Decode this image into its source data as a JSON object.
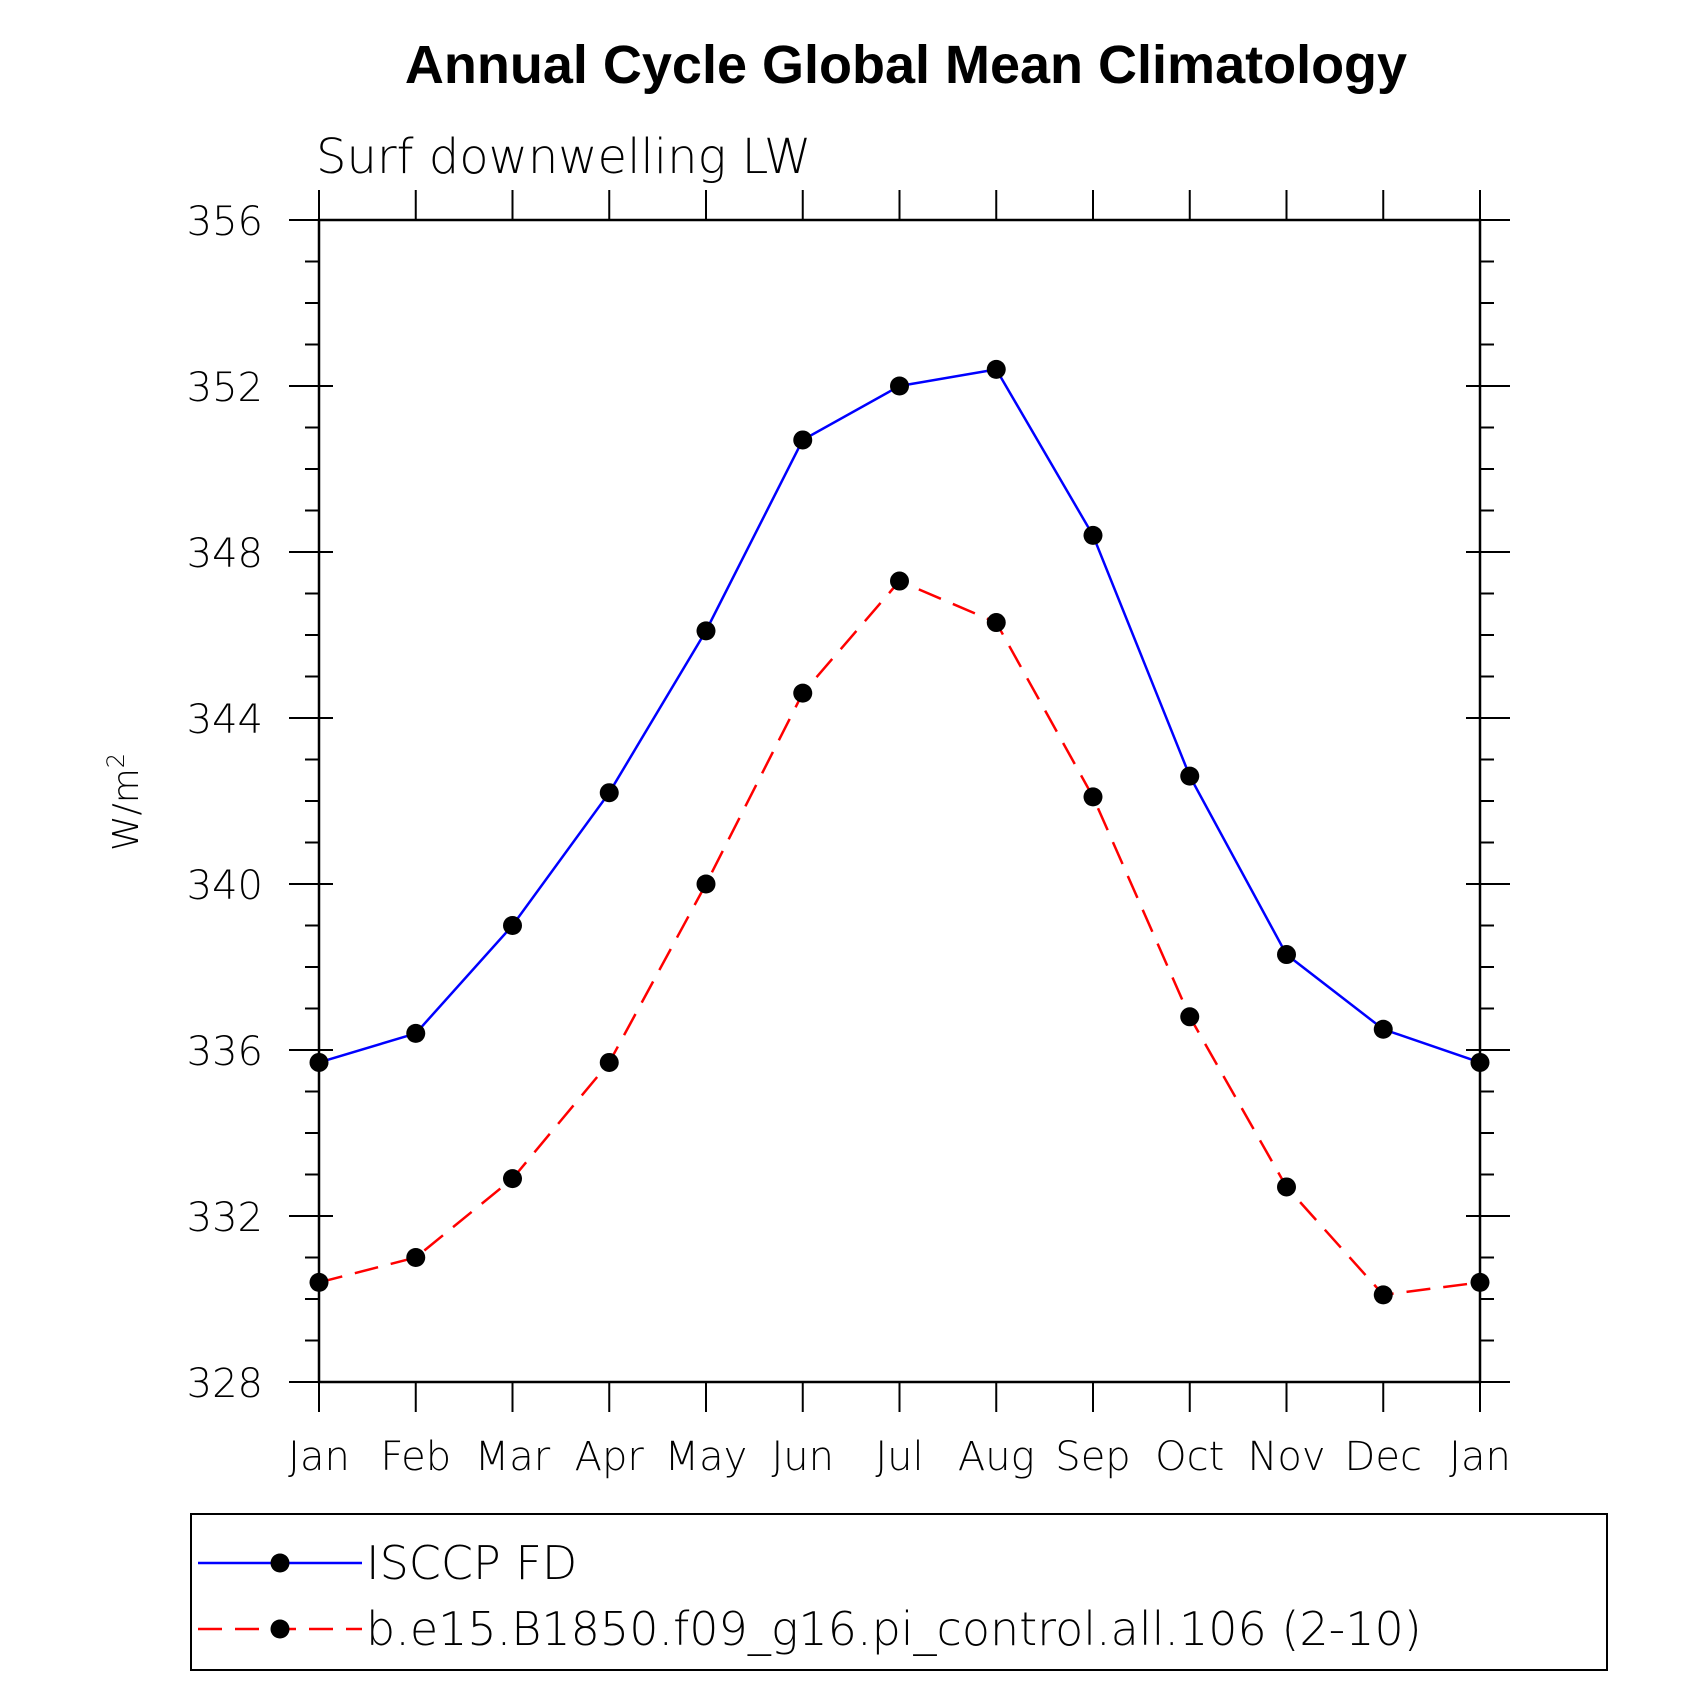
{
  "chart_data": {
    "type": "line",
    "title": "Annual Cycle Global Mean Climatology",
    "subtitle": "Surf downwelling LW",
    "ylabel": "W/m",
    "ylabel_sup": "2",
    "categories": [
      "Jan",
      "Feb",
      "Mar",
      "Apr",
      "May",
      "Jun",
      "Jul",
      "Aug",
      "Sep",
      "Oct",
      "Nov",
      "Dec",
      "Jan"
    ],
    "ylim": [
      328,
      356
    ],
    "yticks": [
      328,
      332,
      336,
      340,
      344,
      348,
      352,
      356
    ],
    "series": [
      {
        "name": "ISCCP FD",
        "color": "#0000ff",
        "dash": "solid",
        "marker": "filled-circle",
        "values": [
          335.7,
          336.4,
          339.0,
          342.2,
          346.1,
          350.7,
          352.0,
          352.4,
          348.4,
          342.6,
          338.3,
          336.5,
          335.7
        ]
      },
      {
        "name": "b.e15.B1850.f09_g16.pi_control.all.106 (2-10)",
        "color": "#ff0000",
        "dash": "dashed",
        "marker": "filled-circle",
        "values": [
          330.4,
          331.0,
          332.9,
          335.7,
          340.0,
          344.6,
          347.3,
          346.3,
          342.1,
          336.8,
          332.7,
          330.1,
          330.4
        ]
      }
    ]
  }
}
